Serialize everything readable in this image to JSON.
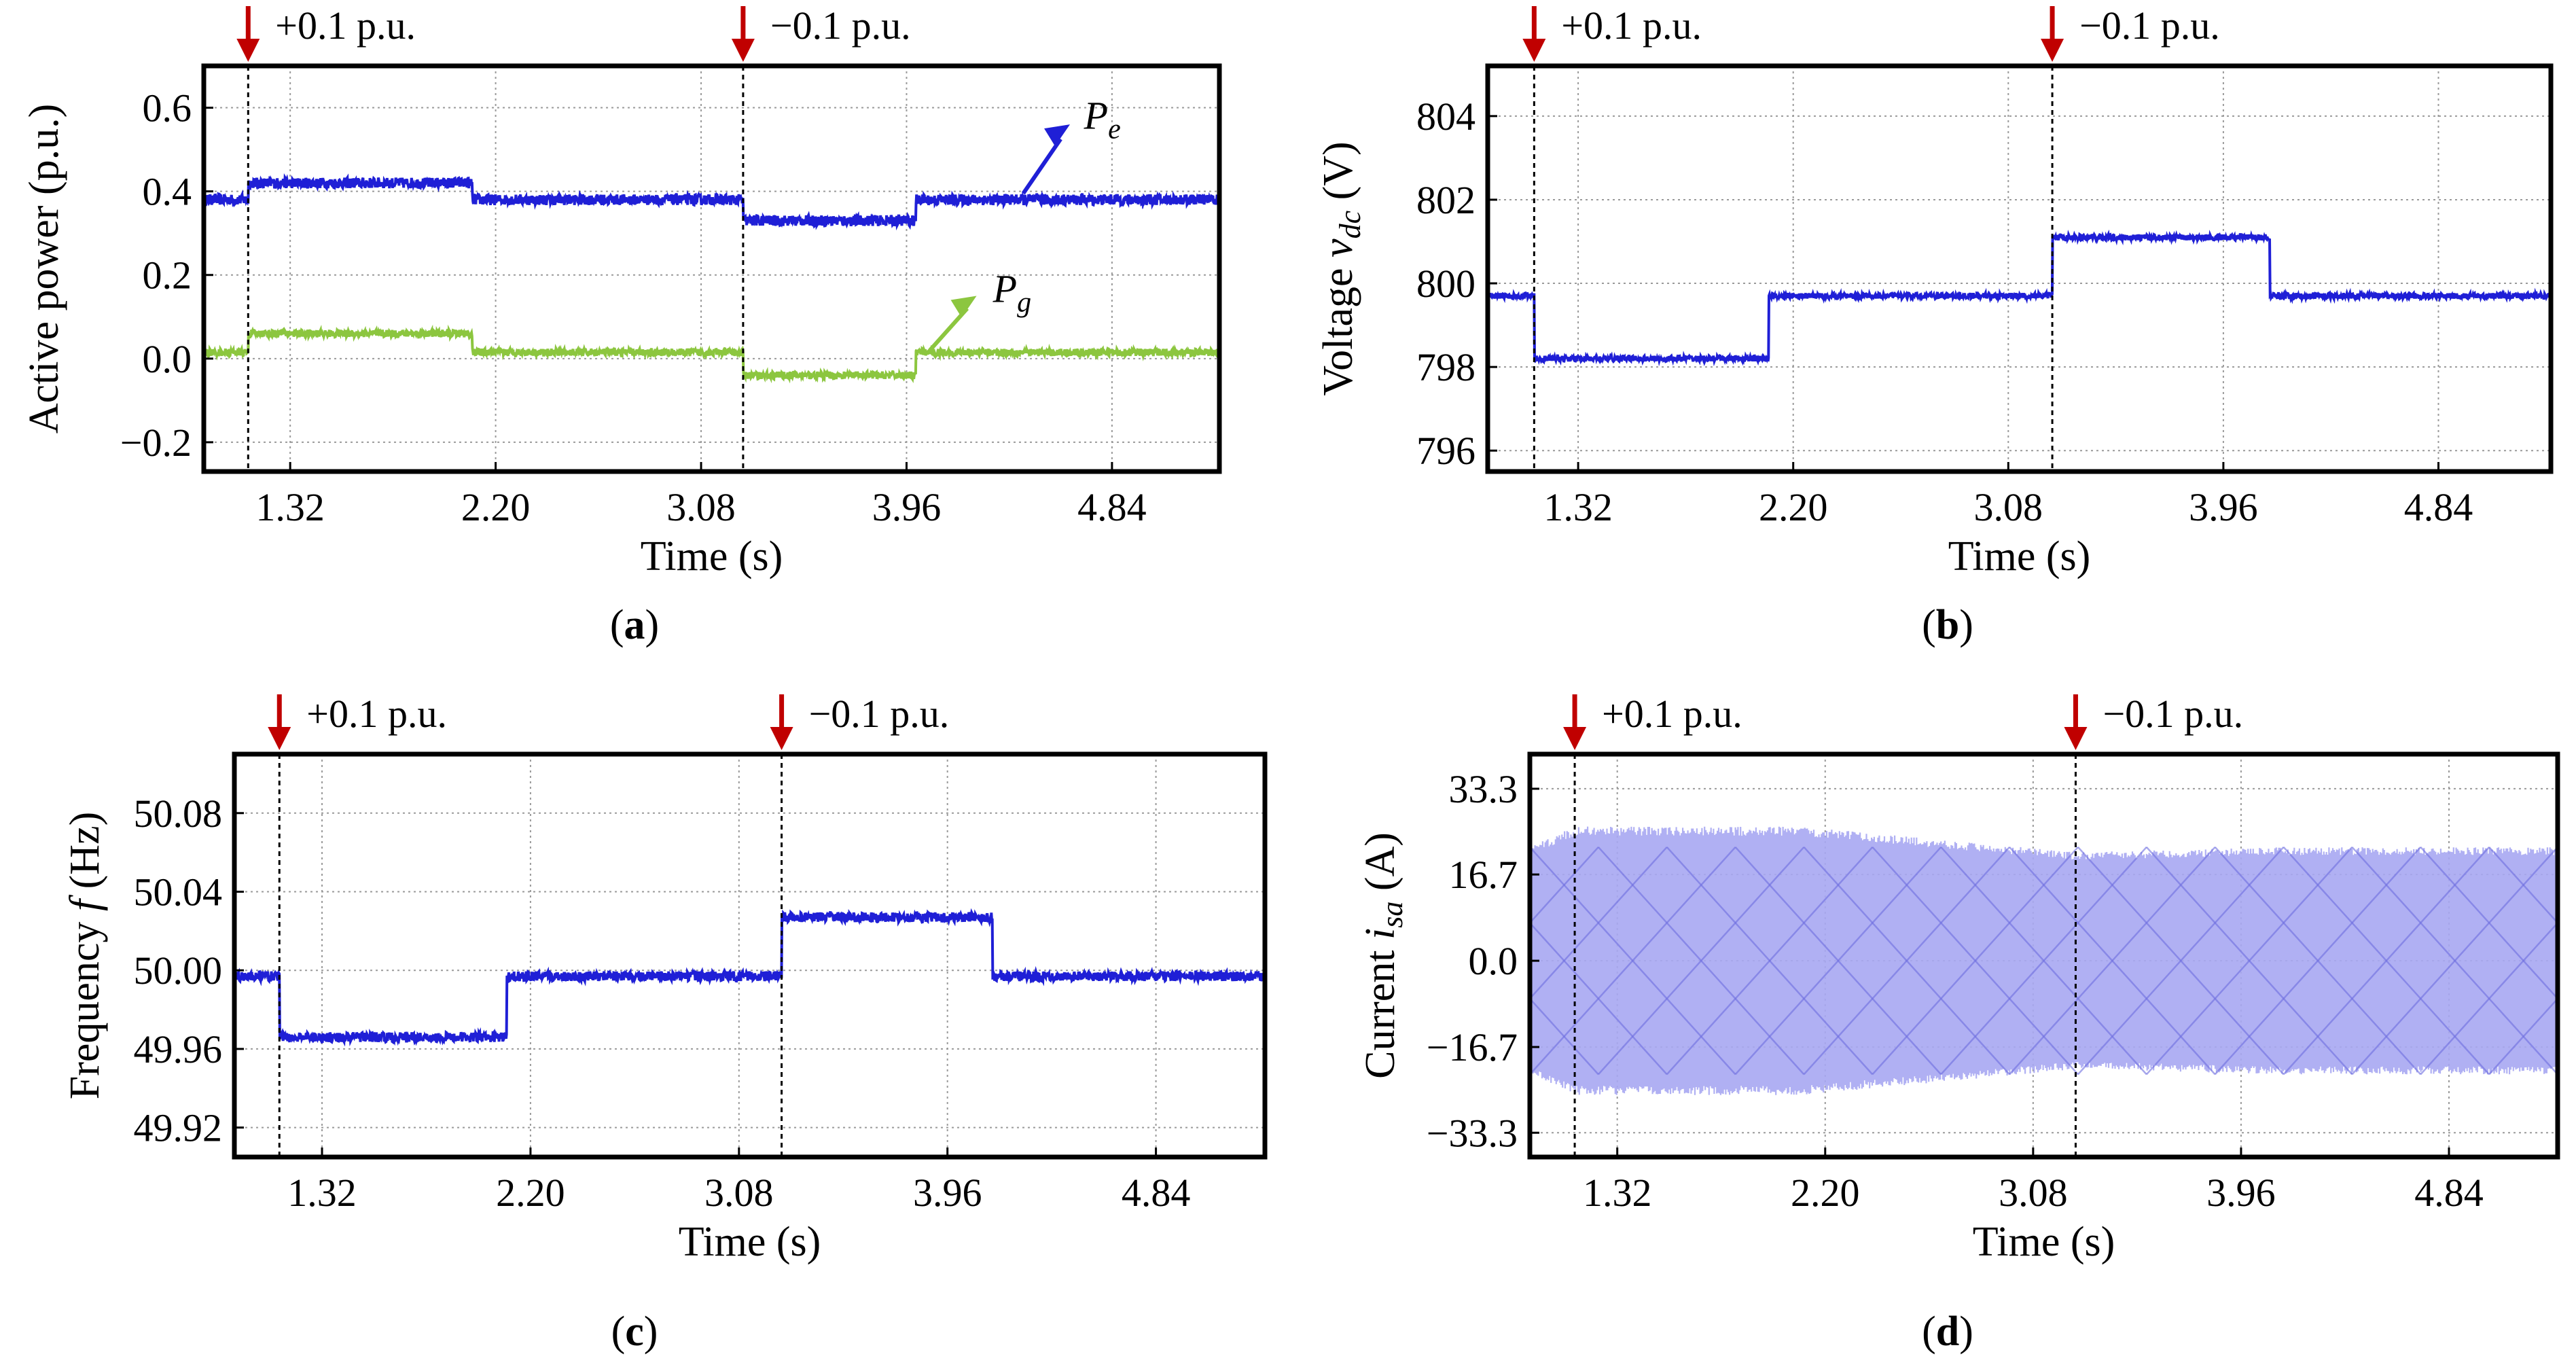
{
  "colors": {
    "frame": "#000000",
    "grid": "#9a9a9a",
    "marker_line": "#000000",
    "arrow": "#c00000",
    "pe": "#1f1fd6",
    "pg": "#8cc63f",
    "vdc": "#1f1fd6",
    "freq": "#1f1fd6",
    "current": "#a7a7f2",
    "current_dark": "#6f6fe0"
  },
  "annotations": {
    "plus": "+0.1 p.u.",
    "minus": "−0.1 p.u."
  },
  "chart_data": [
    {
      "id": "a",
      "type": "line",
      "caption_letter": "a",
      "ylabel": "Active power (p.u.)",
      "xlabel": "Time (s)",
      "xlim": [
        0.95,
        5.3
      ],
      "ylim": [
        -0.27,
        0.7
      ],
      "xticks": [
        1.32,
        2.2,
        3.08,
        3.96,
        4.84
      ],
      "xticklabels": [
        "1.32",
        "2.20",
        "3.08",
        "3.96",
        "4.84"
      ],
      "yticks": [
        0.6,
        0.4,
        0.2,
        0.0,
        -0.2
      ],
      "yticklabels": [
        "0.6",
        "0.4",
        "0.2",
        "0.0",
        "−0.2"
      ],
      "events": [
        1.14,
        3.26
      ],
      "series": [
        {
          "name": "Pe",
          "label_main": "P",
          "label_sub": "e",
          "color_key": "pe",
          "steps": [
            [
              0.95,
              0.38
            ],
            [
              1.14,
              0.42
            ],
            [
              2.1,
              0.38
            ],
            [
              3.26,
              0.33
            ],
            [
              4.0,
              0.38
            ],
            [
              5.3,
              0.38
            ]
          ],
          "noise": 0.013
        },
        {
          "name": "Pg",
          "label_main": "P",
          "label_sub": "g",
          "color_key": "pg",
          "steps": [
            [
              0.95,
              0.015
            ],
            [
              1.14,
              0.06
            ],
            [
              2.1,
              0.015
            ],
            [
              3.26,
              -0.04
            ],
            [
              4.0,
              0.015
            ],
            [
              5.3,
              0.015
            ]
          ],
          "noise": 0.009
        }
      ]
    },
    {
      "id": "b",
      "type": "line",
      "caption_letter": "b",
      "ylabel_main": "Voltage ",
      "ylabel_var": "v",
      "ylabel_sub": "dc",
      "ylabel_unit": " (V)",
      "xlabel": "Time (s)",
      "xlim": [
        0.95,
        5.3
      ],
      "ylim": [
        795.5,
        805.2
      ],
      "xticks": [
        1.32,
        2.2,
        3.08,
        3.96,
        4.84
      ],
      "xticklabels": [
        "1.32",
        "2.20",
        "3.08",
        "3.96",
        "4.84"
      ],
      "yticks": [
        804,
        802,
        800,
        798,
        796
      ],
      "yticklabels": [
        "804",
        "802",
        "800",
        "798",
        "796"
      ],
      "events": [
        1.14,
        3.26
      ],
      "series": [
        {
          "name": "vdc",
          "color_key": "vdc",
          "steps": [
            [
              0.95,
              799.7
            ],
            [
              1.14,
              798.2
            ],
            [
              2.1,
              799.7
            ],
            [
              3.26,
              801.1
            ],
            [
              4.15,
              799.7
            ],
            [
              5.3,
              799.7
            ]
          ],
          "noise": 0.07
        }
      ]
    },
    {
      "id": "c",
      "type": "line",
      "caption_letter": "c",
      "ylabel_main": "Frequency ",
      "ylabel_var": "f",
      "ylabel_unit": " (Hz)",
      "xlabel": "Time (s)",
      "xlim": [
        0.95,
        5.3
      ],
      "ylim": [
        49.905,
        50.11
      ],
      "xticks": [
        1.32,
        2.2,
        3.08,
        3.96,
        4.84
      ],
      "xticklabels": [
        "1.32",
        "2.20",
        "3.08",
        "3.96",
        "4.84"
      ],
      "yticks": [
        50.08,
        50.04,
        50.0,
        49.96,
        49.92
      ],
      "yticklabels": [
        "50.08",
        "50.04",
        "50.00",
        "49.96",
        "49.92"
      ],
      "events": [
        1.14,
        3.26
      ],
      "series": [
        {
          "name": "f",
          "color_key": "freq",
          "steps": [
            [
              0.95,
              49.997
            ],
            [
              1.14,
              49.966
            ],
            [
              2.1,
              49.997
            ],
            [
              3.26,
              50.027
            ],
            [
              4.15,
              49.997
            ],
            [
              5.3,
              49.997
            ]
          ],
          "noise": 0.0025
        }
      ]
    },
    {
      "id": "d",
      "type": "area",
      "caption_letter": "d",
      "ylabel_main": "Current ",
      "ylabel_var": "i",
      "ylabel_sub": "sa",
      "ylabel_unit": " (A)",
      "xlabel": "Time (s)",
      "xlim": [
        0.95,
        5.3
      ],
      "ylim": [
        -38,
        40
      ],
      "xticks": [
        1.32,
        2.2,
        3.08,
        3.96,
        4.84
      ],
      "xticklabels": [
        "1.32",
        "2.20",
        "3.08",
        "3.96",
        "4.84"
      ],
      "yticks": [
        33.3,
        16.7,
        0.0,
        -16.7,
        -33.3
      ],
      "yticklabels": [
        "33.3",
        "16.7",
        "0.0",
        "−16.7",
        "−33.3"
      ],
      "events": [
        1.14,
        3.26
      ],
      "series": [
        {
          "name": "isa",
          "color_key": "current",
          "envelope": [
            [
              0.95,
              22
            ],
            [
              1.14,
              26
            ],
            [
              2.1,
              26
            ],
            [
              3.26,
              21
            ],
            [
              4.15,
              22
            ],
            [
              5.3,
              22
            ]
          ]
        }
      ]
    }
  ]
}
